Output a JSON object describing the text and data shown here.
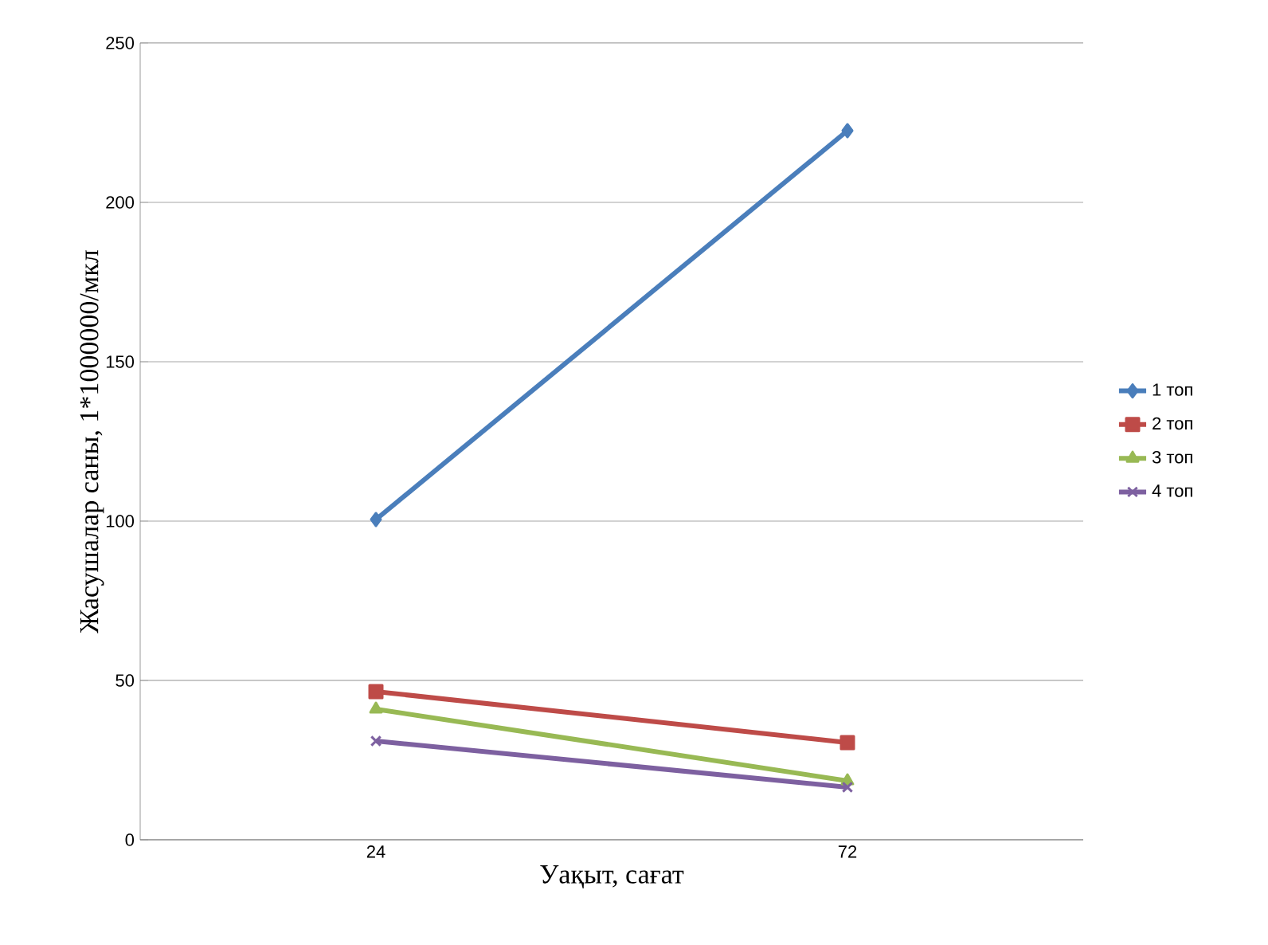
{
  "chart_data": {
    "type": "line",
    "xlabel": "Уақыт, сағат",
    "ylabel": "Жасушалар саны, 1*1000000/мкл",
    "categories": [
      "24",
      "72"
    ],
    "series": [
      {
        "name": "1 топ",
        "color": "#4a7ebb",
        "marker": "diamond",
        "values": [
          100.5,
          222.5
        ]
      },
      {
        "name": "2 топ",
        "color": "#be4b48",
        "marker": "square",
        "values": [
          46.5,
          30.5
        ]
      },
      {
        "name": "3 топ",
        "color": "#98b954",
        "marker": "triangle",
        "values": [
          41,
          18.5
        ]
      },
      {
        "name": "4 топ",
        "color": "#7d60a0",
        "marker": "cross",
        "values": [
          31,
          16.5
        ]
      }
    ],
    "ylim": [
      0,
      250
    ],
    "yticks": [
      0,
      50,
      100,
      150,
      200,
      250
    ],
    "grid": "y",
    "legend": "right",
    "line_style": "solid"
  }
}
